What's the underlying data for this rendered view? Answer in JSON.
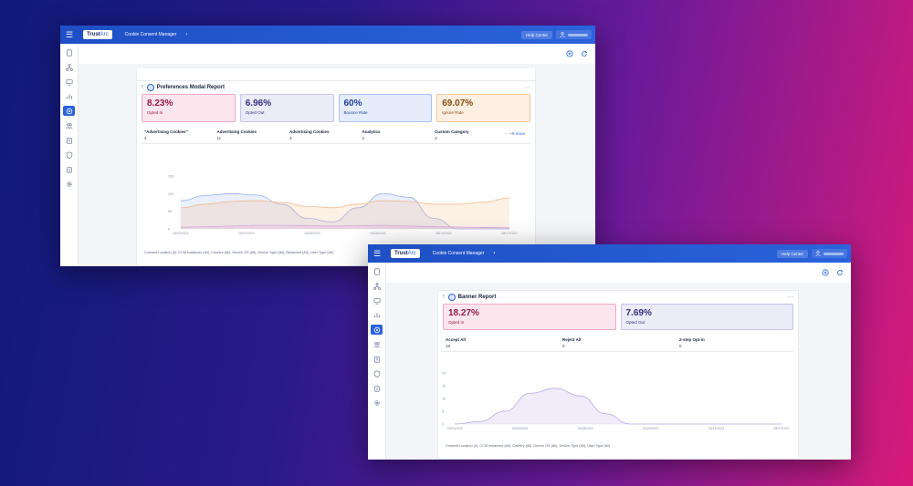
{
  "colors": {
    "brand": "#2a63dc",
    "topbar": "#1f4fc4"
  },
  "app": {
    "logo_main": "TrustArc",
    "title": "Cookie Consent Manager",
    "help": "Help Center"
  },
  "sidebar_icons": [
    "document-icon",
    "network-icon",
    "monitor-icon",
    "chart-icon",
    "cookie-settings-icon",
    "people-icon",
    "building-icon",
    "shield-icon",
    "clipboard-icon",
    "gear-icon"
  ],
  "window1": {
    "card_title": "Preferences Modal Report",
    "more": "···",
    "metrics": [
      {
        "value": "8.23%",
        "label": "Opted In"
      },
      {
        "value": "6.96%",
        "label": "Opted Out"
      },
      {
        "value": "60%",
        "label": "Bounce Rate"
      },
      {
        "value": "69.07%",
        "label": "Ignore Rate"
      }
    ],
    "categories": [
      {
        "name": "\"Advertising Cookies\"",
        "value": "4"
      },
      {
        "name": "Advertising Cookies",
        "value": "11"
      },
      {
        "name": "Advertising Cookies",
        "value": "3"
      },
      {
        "name": "Analytics",
        "value": "2"
      },
      {
        "name": "Custom Category",
        "value": "2"
      }
    ],
    "more_link": "··· +9 more",
    "chart_data": {
      "type": "area",
      "y_ticks": [
        "150",
        "100",
        "50",
        "0"
      ],
      "ylim": [
        0,
        150
      ],
      "x_ticks": [
        "03/02/2023",
        "03/22/2023",
        "04/08/2023",
        "04/26/2023",
        "05/14/2023",
        "05/17/2023"
      ],
      "series": [
        {
          "color": "#9bb4ec",
          "values": [
            80,
            95,
            100,
            96,
            70,
            30,
            20,
            60,
            100,
            90,
            30,
            0,
            0,
            0
          ]
        },
        {
          "color": "#f4b98a",
          "values": [
            60,
            70,
            78,
            80,
            75,
            64,
            60,
            70,
            80,
            78,
            70,
            70,
            76,
            88
          ]
        },
        {
          "color": "#d9a3e0",
          "values": [
            5,
            6,
            8,
            10,
            10,
            9,
            8,
            9,
            10,
            8,
            6,
            5,
            4,
            3
          ]
        }
      ]
    },
    "footer": "Consent Location (2), CCM Instances (All), Country (All), Device OS (All), Device Type (All), Behaviors (All), User Type (All)"
  },
  "window2": {
    "card_title": "Banner Report",
    "more": "···",
    "metrics": [
      {
        "value": "18.27%",
        "label": "Opted In"
      },
      {
        "value": "7.69%",
        "label": "Opted Out"
      }
    ],
    "categories": [
      {
        "name": "Accept All",
        "value": "18"
      },
      {
        "name": "Reject All",
        "value": "0"
      },
      {
        "name": "2-step Opt-in",
        "value": "0"
      }
    ],
    "chart_data": {
      "type": "area",
      "y_ticks": [
        "20",
        "15",
        "10",
        "5",
        "0"
      ],
      "ylim": [
        0,
        20
      ],
      "x_ticks": [
        "03/02/2023",
        "03/22/2023",
        "04/08/2023",
        "04/26/2023",
        "05/14/2023",
        "05/17/2023"
      ],
      "series": [
        {
          "color": "#b9a9e6",
          "values": [
            0,
            1,
            5,
            12,
            14,
            11,
            4,
            0,
            0,
            0,
            0,
            0,
            0,
            0
          ]
        }
      ]
    },
    "footer": "Consent Location (2), CCM Instances (All), Country (All), Device OS (All), Device Type (All), User Type (All)"
  }
}
